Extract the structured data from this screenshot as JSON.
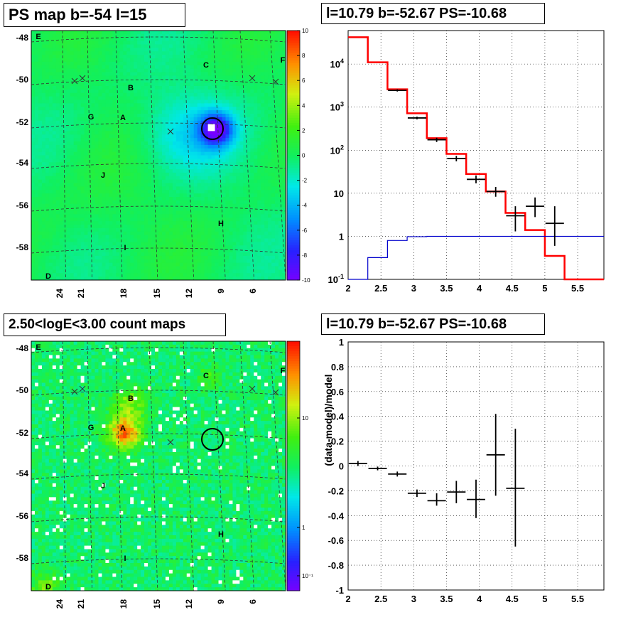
{
  "panels": {
    "top_left_title": "PS map b=-54 l=15",
    "top_right_title": "l=10.79 b=-52.67 PS=-10.68",
    "bottom_left_title": "2.50<logE<3.00 count maps",
    "bottom_right_title": "l=10.79 b=-52.67 PS=-10.68"
  },
  "chart_data": [
    {
      "type": "heatmap",
      "title": "PS map b=-54 l=15",
      "y_ticks": [
        "-48",
        "-50",
        "-52",
        "-54",
        "-56",
        "-58"
      ],
      "x_ticks": [
        "24",
        "21",
        "18",
        "15",
        "12",
        "9",
        "6"
      ],
      "colorbar_ticks": [
        "10",
        "8",
        "6",
        "4",
        "2",
        "0",
        "-2",
        "-4",
        "-6",
        "-8",
        "-10"
      ],
      "colorbar_range": [
        -10,
        10
      ],
      "labels": [
        "E",
        "F",
        "C",
        "B",
        "G",
        "A",
        "J",
        "H",
        "I",
        "D"
      ],
      "highlight_circle": {
        "l": 10.79,
        "b": -52.67
      }
    },
    {
      "type": "line",
      "title": "l=10.79 b=-52.67 PS=-10.68",
      "x_ticks": [
        "2",
        "2.5",
        "3",
        "3.5",
        "4",
        "4.5",
        "5",
        "5.5"
      ],
      "y_ticks": [
        "10^-1",
        "1",
        "10",
        "10^2",
        "10^3",
        "10^4"
      ],
      "xlim": [
        2,
        5.9
      ],
      "ylim": [
        0.1,
        60000
      ],
      "y_scale": "log",
      "grid": true,
      "bin_edges": [
        2.0,
        2.3,
        2.6,
        2.9,
        3.2,
        3.5,
        3.8,
        4.1,
        4.4,
        4.7,
        5.0,
        5.3,
        5.6,
        5.9
      ],
      "series": [
        {
          "color": "#ff0000",
          "values": [
            42000,
            11000,
            2600,
            720,
            190,
            82,
            28,
            11,
            3.5,
            1.4,
            0.35,
            0.1,
            0.06
          ]
        },
        {
          "color": "#0000cc",
          "values": [
            0.06,
            0.32,
            0.8,
            0.98,
            1.0,
            1.0,
            1.0,
            1.0,
            1.0,
            1.0,
            1.0,
            1.0,
            1.0
          ]
        }
      ],
      "data_points": [
        {
          "x": 2.75,
          "y": 2450,
          "ylo": 2300,
          "yhi": 2600
        },
        {
          "x": 3.05,
          "y": 560,
          "ylo": 520,
          "yhi": 600
        },
        {
          "x": 3.35,
          "y": 175,
          "ylo": 155,
          "yhi": 195
        },
        {
          "x": 3.65,
          "y": 64,
          "ylo": 55,
          "yhi": 74
        },
        {
          "x": 3.95,
          "y": 21,
          "ylo": 17,
          "yhi": 26
        },
        {
          "x": 4.25,
          "y": 11,
          "ylo": 8.3,
          "yhi": 14
        },
        {
          "x": 4.55,
          "y": 3,
          "ylo": 1.3,
          "yhi": 5
        },
        {
          "x": 4.85,
          "y": 5,
          "ylo": 2.8,
          "yhi": 8
        },
        {
          "x": 5.15,
          "y": 2,
          "ylo": 0.6,
          "yhi": 5
        }
      ]
    },
    {
      "type": "heatmap",
      "title": "2.50<logE<3.00 count maps",
      "y_ticks": [
        "-48",
        "-50",
        "-52",
        "-54",
        "-56",
        "-58"
      ],
      "x_ticks": [
        "24",
        "21",
        "18",
        "15",
        "12",
        "9",
        "6"
      ],
      "colorbar_ticks": [
        "10",
        "1",
        "10^-1"
      ],
      "colorbar_scale": "log",
      "labels": [
        "E",
        "F",
        "C",
        "B",
        "G",
        "A",
        "J",
        "H",
        "I",
        "D"
      ],
      "highlight_circle": {
        "l": 10.79,
        "b": -52.67
      }
    },
    {
      "type": "scatter",
      "title": "l=10.79 b=-52.67 PS=-10.68",
      "ylabel": "(data-model)/model",
      "x_ticks": [
        "2",
        "2.5",
        "3",
        "3.5",
        "4",
        "4.5",
        "5",
        "5.5"
      ],
      "y_ticks": [
        "1",
        "0.8",
        "0.6",
        "0.4",
        "0.2",
        "0",
        "-0.2",
        "-0.4",
        "-0.6",
        "-0.8",
        "-1"
      ],
      "xlim": [
        2,
        5.9
      ],
      "ylim": [
        -1,
        1
      ],
      "grid": true,
      "points": [
        {
          "x": 2.15,
          "y": 0.02,
          "ylo": 0.0,
          "yhi": 0.04
        },
        {
          "x": 2.45,
          "y": -0.02,
          "ylo": -0.035,
          "yhi": -0.005
        },
        {
          "x": 2.75,
          "y": -0.065,
          "ylo": -0.085,
          "yhi": -0.045
        },
        {
          "x": 3.05,
          "y": -0.22,
          "ylo": -0.25,
          "yhi": -0.19
        },
        {
          "x": 3.35,
          "y": -0.28,
          "ylo": -0.32,
          "yhi": -0.22
        },
        {
          "x": 3.65,
          "y": -0.21,
          "ylo": -0.3,
          "yhi": -0.12
        },
        {
          "x": 3.95,
          "y": -0.27,
          "ylo": -0.42,
          "yhi": -0.11
        },
        {
          "x": 4.25,
          "y": 0.09,
          "ylo": -0.24,
          "yhi": 0.42
        },
        {
          "x": 4.55,
          "y": -0.18,
          "ylo": -0.65,
          "yhi": 0.3
        }
      ]
    }
  ]
}
